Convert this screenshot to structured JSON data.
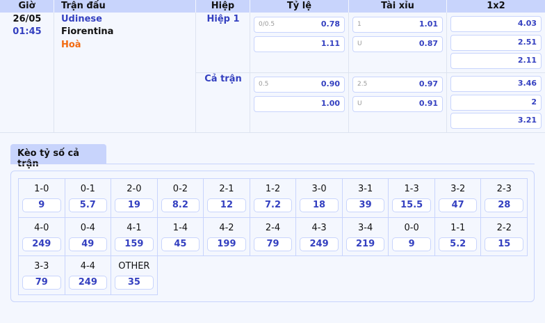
{
  "header": {
    "time": "Giờ",
    "match": "Trận đấu",
    "half": "Hiệp",
    "handicap": "Tỷ lệ",
    "overunder": "Tài xỉu",
    "x12": "1x2"
  },
  "match": {
    "date": "26/05",
    "time": "01:45",
    "home": "Udinese",
    "away": "Fiorentina",
    "draw": "Hoà"
  },
  "periods": [
    {
      "name": "Hiệp 1",
      "handicap": [
        {
          "line": "0/0.5",
          "odds": "0.78"
        },
        {
          "line": "",
          "odds": "1.11"
        }
      ],
      "overunder": [
        {
          "line": "1",
          "odds": "1.01"
        },
        {
          "line": "U",
          "odds": "0.87"
        }
      ],
      "x12": [
        "4.03",
        "2.51",
        "2.11"
      ]
    },
    {
      "name": "Cả trận",
      "handicap": [
        {
          "line": "0.5",
          "odds": "0.90"
        },
        {
          "line": "",
          "odds": "1.00"
        }
      ],
      "overunder": [
        {
          "line": "2.5",
          "odds": "0.97"
        },
        {
          "line": "U",
          "odds": "0.91"
        }
      ],
      "x12": [
        "3.46",
        "2",
        "3.21"
      ]
    }
  ],
  "correct_score": {
    "tab": "Kèo tỷ số cả trận",
    "items": [
      {
        "s": "1-0",
        "o": "9"
      },
      {
        "s": "0-1",
        "o": "5.7"
      },
      {
        "s": "2-0",
        "o": "19"
      },
      {
        "s": "0-2",
        "o": "8.2"
      },
      {
        "s": "2-1",
        "o": "12"
      },
      {
        "s": "1-2",
        "o": "7.2"
      },
      {
        "s": "3-0",
        "o": "18"
      },
      {
        "s": "3-1",
        "o": "39"
      },
      {
        "s": "1-3",
        "o": "15.5"
      },
      {
        "s": "3-2",
        "o": "47"
      },
      {
        "s": "2-3",
        "o": "28"
      },
      {
        "s": "4-0",
        "o": "249"
      },
      {
        "s": "0-4",
        "o": "49"
      },
      {
        "s": "4-1",
        "o": "159"
      },
      {
        "s": "1-4",
        "o": "45"
      },
      {
        "s": "4-2",
        "o": "199"
      },
      {
        "s": "2-4",
        "o": "79"
      },
      {
        "s": "4-3",
        "o": "249"
      },
      {
        "s": "3-4",
        "o": "219"
      },
      {
        "s": "0-0",
        "o": "9"
      },
      {
        "s": "1-1",
        "o": "5.2"
      },
      {
        "s": "2-2",
        "o": "15"
      },
      {
        "s": "3-3",
        "o": "79"
      },
      {
        "s": "4-4",
        "o": "249"
      },
      {
        "s": "OTHER",
        "o": "35"
      }
    ]
  }
}
